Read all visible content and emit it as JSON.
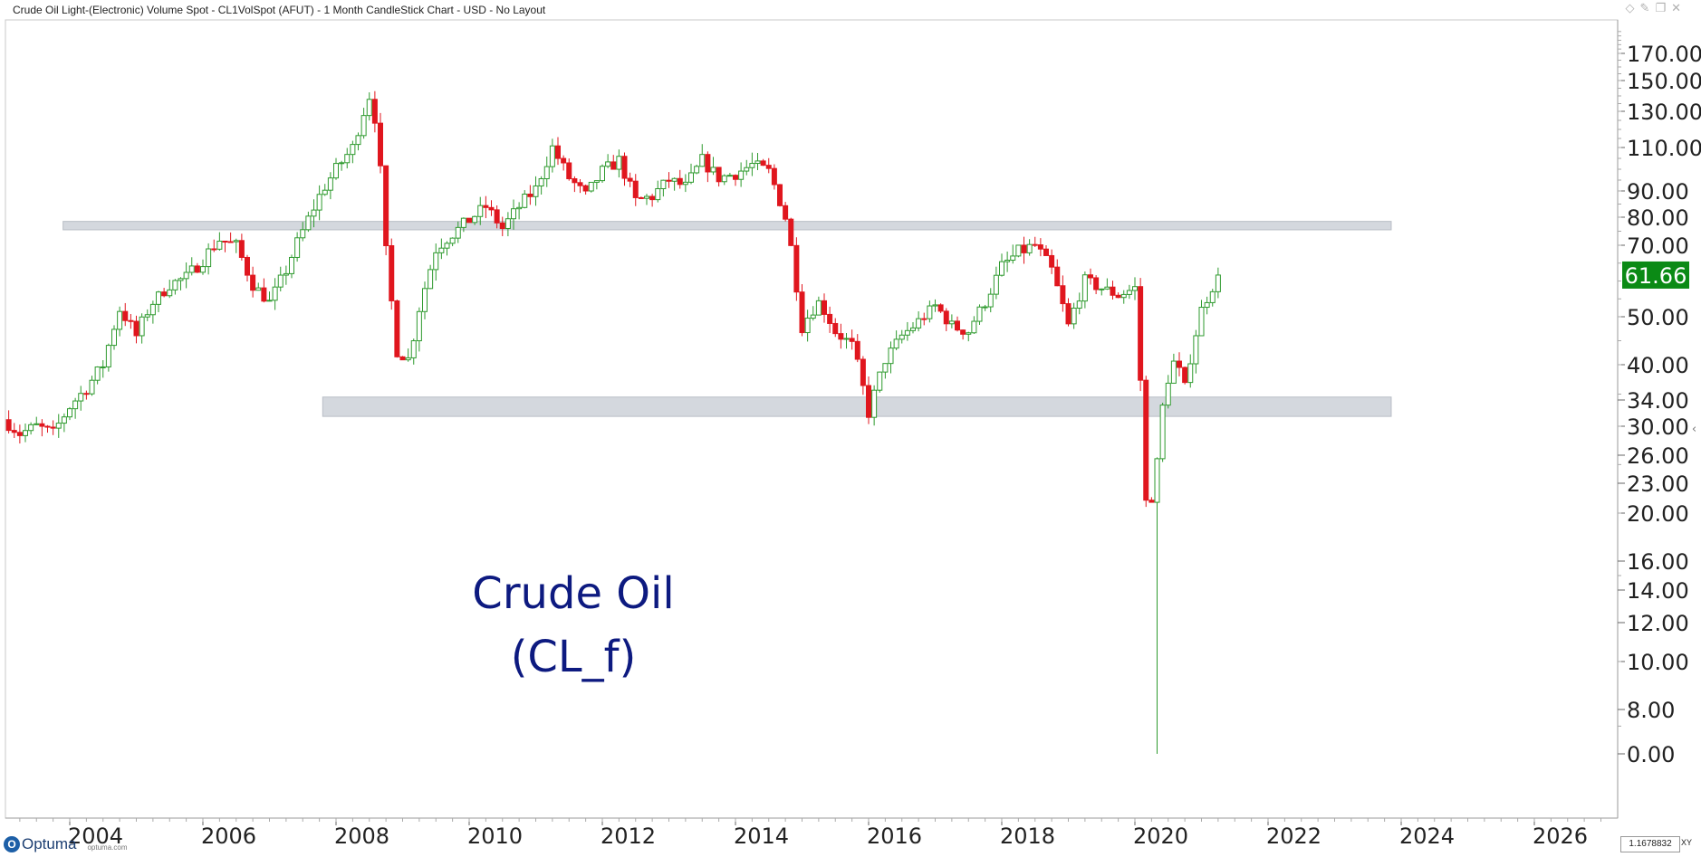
{
  "window": {
    "title": "Crude Oil Light-(Electronic) Volume Spot - CL1VolSpot (AFUT) - 1 Month CandleStick Chart - USD - No Layout"
  },
  "footer": {
    "brand": "Optuma",
    "url": "optuma.com",
    "scale_value": "1.1678832",
    "scale_mode": "XY"
  },
  "chart_data": {
    "type": "candlestick",
    "title": "",
    "xlabel": "",
    "ylabel": "",
    "annotation": [
      "Crude Oil",
      "(CL_f)"
    ],
    "last_price": "61.66",
    "x_ticks": [
      "2004",
      "2006",
      "2008",
      "2010",
      "2012",
      "2014",
      "2016",
      "2018",
      "2020",
      "2022",
      "2024",
      "2026"
    ],
    "y_ticks": [
      "170.00",
      "150.00",
      "130.00",
      "110.00",
      "90.00",
      "80.00",
      "70.00",
      "50.00",
      "40.00",
      "34.00",
      "30.00",
      "26.00",
      "23.00",
      "20.00",
      "16.00",
      "14.00",
      "12.00",
      "10.00",
      "8.00",
      "0.00"
    ],
    "zones": [
      {
        "from_year": 2003.9,
        "to_year": 2023.85,
        "low": 75.5,
        "high": 78.5
      },
      {
        "from_year": 2007.8,
        "to_year": 2023.85,
        "low": 31.5,
        "high": 34.5
      }
    ],
    "colors": {
      "up": "#2e9a2e",
      "down": "#e0161e",
      "zone": "#d4d8de",
      "annotation": "#0d1a80",
      "last_price_bg": "#0b8a15"
    },
    "anchors": [
      [
        2003.0,
        31
      ],
      [
        2003.25,
        29
      ],
      [
        2003.5,
        30
      ],
      [
        2003.75,
        29
      ],
      [
        2004.0,
        33
      ],
      [
        2004.25,
        36
      ],
      [
        2004.5,
        40
      ],
      [
        2004.75,
        52
      ],
      [
        2005.0,
        46
      ],
      [
        2005.25,
        54
      ],
      [
        2005.5,
        59
      ],
      [
        2005.75,
        61
      ],
      [
        2006.0,
        66
      ],
      [
        2006.25,
        72
      ],
      [
        2006.5,
        70
      ],
      [
        2006.75,
        59
      ],
      [
        2007.0,
        54
      ],
      [
        2007.25,
        63
      ],
      [
        2007.5,
        75
      ],
      [
        2007.75,
        88
      ],
      [
        2008.0,
        100
      ],
      [
        2008.25,
        110
      ],
      [
        2008.5,
        140
      ],
      [
        2008.6,
        124
      ],
      [
        2008.75,
        68
      ],
      [
        2008.9,
        43
      ],
      [
        2009.1,
        41
      ],
      [
        2009.3,
        56
      ],
      [
        2009.5,
        69
      ],
      [
        2009.75,
        74
      ],
      [
        2010.0,
        79
      ],
      [
        2010.25,
        84
      ],
      [
        2010.5,
        76
      ],
      [
        2010.75,
        84
      ],
      [
        2011.0,
        91
      ],
      [
        2011.25,
        110
      ],
      [
        2011.5,
        96
      ],
      [
        2011.75,
        88
      ],
      [
        2012.0,
        99
      ],
      [
        2012.25,
        104
      ],
      [
        2012.5,
        86
      ],
      [
        2012.75,
        88
      ],
      [
        2013.0,
        95
      ],
      [
        2013.25,
        92
      ],
      [
        2013.5,
        104
      ],
      [
        2013.75,
        96
      ],
      [
        2014.0,
        98
      ],
      [
        2014.25,
        102
      ],
      [
        2014.5,
        99
      ],
      [
        2014.75,
        80
      ],
      [
        2015.0,
        48
      ],
      [
        2015.25,
        54
      ],
      [
        2015.5,
        47
      ],
      [
        2015.75,
        44
      ],
      [
        2016.0,
        32
      ],
      [
        2016.25,
        41
      ],
      [
        2016.5,
        46
      ],
      [
        2016.75,
        49
      ],
      [
        2017.0,
        53
      ],
      [
        2017.25,
        48
      ],
      [
        2017.5,
        47
      ],
      [
        2017.75,
        54
      ],
      [
        2018.0,
        64
      ],
      [
        2018.25,
        68
      ],
      [
        2018.5,
        70
      ],
      [
        2018.75,
        63
      ],
      [
        2019.0,
        48
      ],
      [
        2019.25,
        60
      ],
      [
        2019.5,
        58
      ],
      [
        2019.75,
        56
      ],
      [
        2020.0,
        58
      ],
      [
        2020.15,
        21
      ],
      [
        2020.3,
        22
      ],
      [
        2020.45,
        36
      ],
      [
        2020.6,
        41
      ],
      [
        2020.75,
        36
      ],
      [
        2021.0,
        52
      ],
      [
        2021.25,
        61.66
      ]
    ]
  }
}
